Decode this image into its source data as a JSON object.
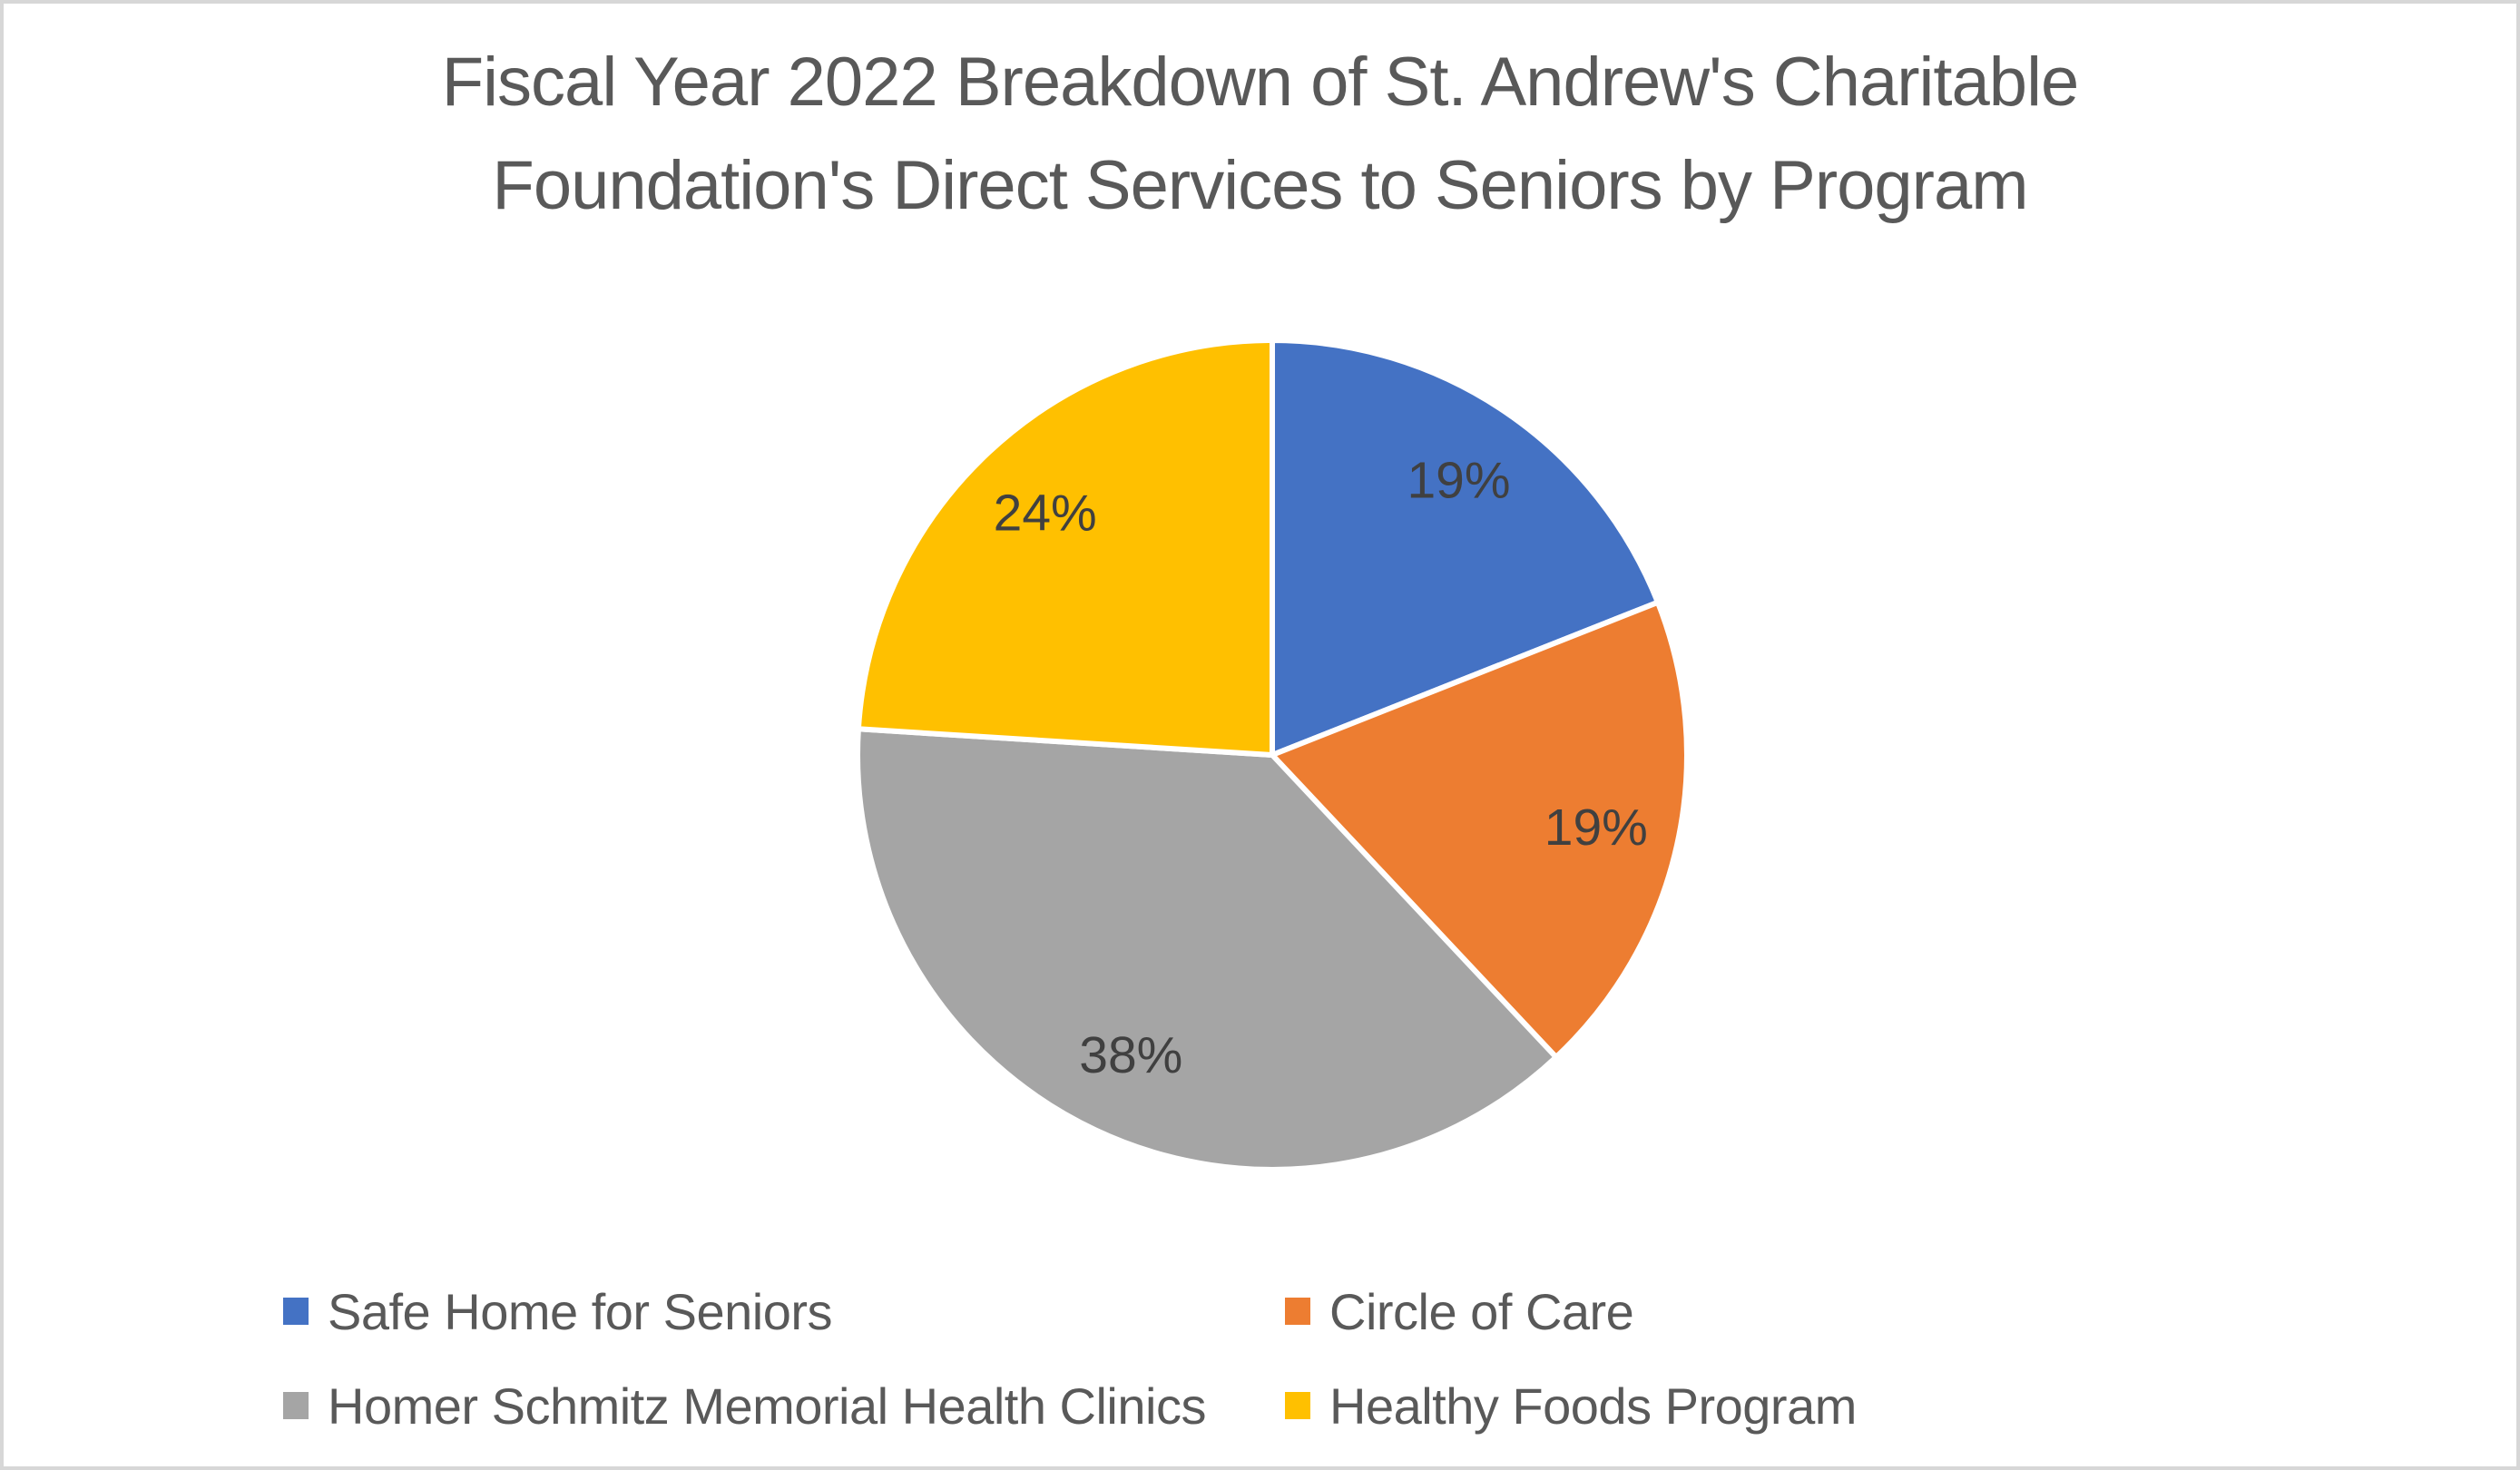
{
  "window": {
    "background": "#FFFFFF",
    "border_color": "#D7D7D7"
  },
  "chart_data": {
    "type": "pie",
    "title": "Fiscal Year 2022 Breakdown of St. Andrew's Charitable Foundation's Direct Services to Seniors by Program",
    "title_lines": [
      "Fiscal Year 2022 Breakdown of St. Andrew's Charitable",
      "Foundation's Direct Services to Seniors by Program"
    ],
    "categories": [
      "Safe Home for Seniors",
      "Circle of Care",
      "Homer Schmitz Memorial Health Clinics",
      "Healthy Foods Program"
    ],
    "values": [
      19,
      19,
      38,
      24
    ],
    "data_labels": [
      "19%",
      "19%",
      "38%",
      "24%"
    ],
    "colors": [
      "#4472C4",
      "#ED7D31",
      "#A5A5A5",
      "#FFC000"
    ],
    "start_angle_deg": 0,
    "direction": "clockwise",
    "slice_border_color": "#FFFFFF",
    "title_color": "#595959",
    "data_label_color": "#404040",
    "legend_text_color": "#595959",
    "legend_position": "bottom"
  }
}
